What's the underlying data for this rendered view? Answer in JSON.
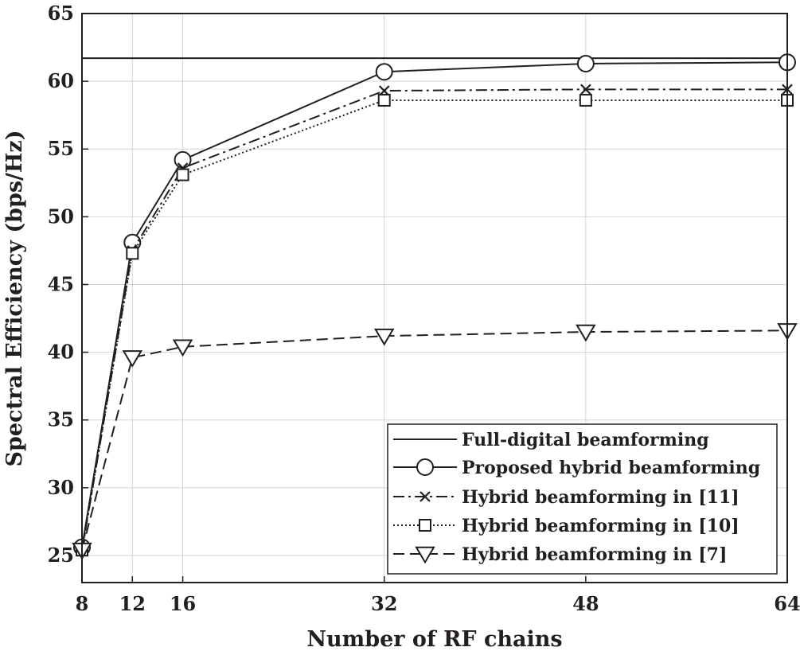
{
  "chart_data": {
    "type": "line",
    "title": "",
    "xlabel": "Number of RF chains",
    "ylabel": "Spectral Efficiency (bps/Hz)",
    "xlim": [
      8,
      64
    ],
    "ylim": [
      23,
      65
    ],
    "xticks": [
      8,
      12,
      16,
      32,
      48,
      64
    ],
    "yticks": [
      25,
      30,
      35,
      40,
      45,
      50,
      55,
      60,
      65
    ],
    "grid": true,
    "legend_position": "bottom-right",
    "x": [
      8,
      12,
      16,
      32,
      48,
      64
    ],
    "series": [
      {
        "name": "Full-digital beamforming",
        "style": "solid",
        "marker": "none",
        "values": [
          61.7,
          61.7,
          61.7,
          61.7,
          61.7,
          61.7
        ]
      },
      {
        "name": "Proposed hybrid beamforming",
        "style": "solid",
        "marker": "circle",
        "values": [
          25.6,
          48.1,
          54.2,
          60.7,
          61.3,
          61.4
        ]
      },
      {
        "name": "Hybrid beamforming in [11]",
        "style": "dashdot",
        "marker": "x",
        "values": [
          25.3,
          47.5,
          53.6,
          59.3,
          59.4,
          59.4
        ]
      },
      {
        "name": "Hybrid beamforming in [10]",
        "style": "dotted",
        "marker": "square",
        "values": [
          25.4,
          47.3,
          53.1,
          58.6,
          58.6,
          58.6
        ]
      },
      {
        "name": "Hybrid beamforming in [7]",
        "style": "dashed",
        "marker": "triangle-down",
        "values": [
          25.4,
          39.6,
          40.4,
          41.2,
          41.5,
          41.6
        ]
      }
    ]
  }
}
